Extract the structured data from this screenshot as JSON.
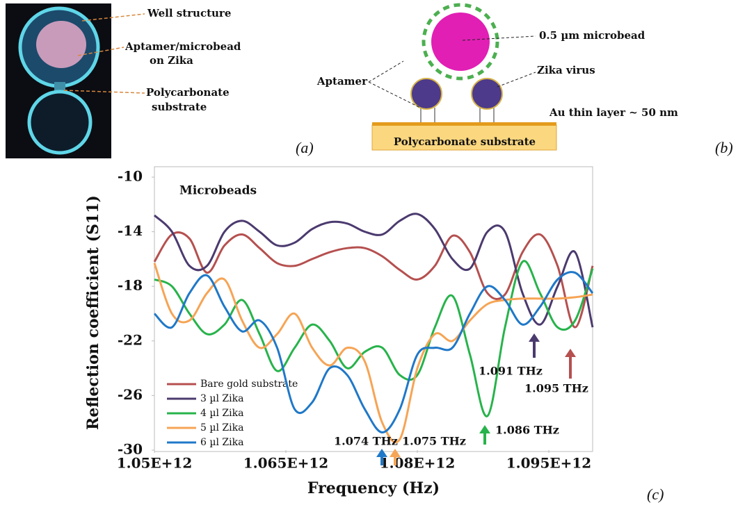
{
  "panel_a": {
    "label": "(a)",
    "annotations": [
      [
        "Well structure"
      ],
      [
        "Aptamer/microbead",
        "on Zika"
      ],
      [
        "Polycarbonate",
        "substrate"
      ]
    ]
  },
  "panel_b": {
    "label": "(b)",
    "microbead": "0.5 µm microbead",
    "virus": "Zika virus",
    "aptamer": "Aptamer",
    "layer": "Au thin layer ~ 50 nm",
    "substrate": "Polycarbonate substrate"
  },
  "chart_data": {
    "type": "line",
    "panel_label": "(c)",
    "inset_title": "Microbeads",
    "xlabel": "Frequency (Hz)",
    "ylabel": "Reflection coefficient (S11)",
    "x": [
      1050000000000.0,
      1052000000000.0,
      1054000000000.0,
      1056000000000.0,
      1058000000000.0,
      1060000000000.0,
      1062000000000.0,
      1064000000000.0,
      1066000000000.0,
      1068000000000.0,
      1070000000000.0,
      1072000000000.0,
      1074000000000.0,
      1076000000000.0,
      1078000000000.0,
      1080000000000.0,
      1082000000000.0,
      1084000000000.0,
      1086000000000.0,
      1088000000000.0,
      1090000000000.0,
      1092000000000.0,
      1094000000000.0,
      1096000000000.0,
      1098000000000.0,
      1100000000000.0
    ],
    "xlim": [
      1050000000000.0,
      1100000000000.0
    ],
    "xticks": [
      {
        "value": 1050000000000.0,
        "label": "1.05E+12"
      },
      {
        "value": 1065000000000.0,
        "label": "1.065E+12"
      },
      {
        "value": 1080000000000.0,
        "label": "1.08E+12"
      },
      {
        "value": 1095000000000.0,
        "label": "1.095E+12"
      }
    ],
    "ylim": [
      -30,
      -10
    ],
    "yticks": [
      -10,
      -14,
      -18,
      -22,
      -26,
      -30
    ],
    "series": [
      {
        "name": "Bare gold substrate",
        "color": "#b5504f",
        "values": [
          -16.2,
          -14.2,
          -14.5,
          -17,
          -15,
          -14.2,
          -15.2,
          -16.3,
          -16.5,
          -16,
          -15.5,
          -15.2,
          -15.2,
          -15.8,
          -16.8,
          -17.5,
          -16.5,
          -14.3,
          -15.5,
          -18.5,
          -18.6,
          -15.5,
          -14.2,
          -16.5,
          -21,
          -16.5
        ]
      },
      {
        "name": "3 µl Zika",
        "color": "#4b3a6e",
        "values": [
          -12.8,
          -14,
          -16.5,
          -16.5,
          -14,
          -13.2,
          -14,
          -15,
          -14.8,
          -13.8,
          -13.3,
          -13.4,
          -14,
          -14.2,
          -13.2,
          -12.7,
          -13.8,
          -16,
          -16.7,
          -14,
          -14,
          -18.5,
          -20.8,
          -18,
          -15.5,
          -21
        ]
      },
      {
        "name": "4 µl Zika",
        "color": "#27b34b",
        "values": [
          -17.5,
          -18,
          -20,
          -21.5,
          -20.8,
          -19,
          -21.5,
          -24.2,
          -22.5,
          -20.8,
          -22,
          -24,
          -22.8,
          -22.5,
          -24.5,
          -24.5,
          -21,
          -18.7,
          -23,
          -27.5,
          -21,
          -16.2,
          -18.5,
          -21,
          -20.5,
          -16.7
        ]
      },
      {
        "name": "5 µl Zika",
        "color": "#f6a455",
        "values": [
          -16.3,
          -20,
          -20.5,
          -18.5,
          -17.5,
          -20.5,
          -22.5,
          -21.5,
          -20,
          -22.5,
          -23.8,
          -22.5,
          -23.5,
          -28,
          -29.2,
          -24,
          -21.5,
          -22,
          -20.5,
          -19.3,
          -19,
          -18.9,
          -18.9,
          -18.9,
          -18.8,
          -18.6
        ]
      },
      {
        "name": "6 µl Zika",
        "color": "#1f78c8",
        "values": [
          -20,
          -21,
          -18.5,
          -17.2,
          -19.5,
          -21.3,
          -20.5,
          -22.5,
          -27,
          -26.5,
          -24,
          -24.5,
          -27,
          -28.7,
          -27,
          -23,
          -22.5,
          -22.5,
          -20,
          -18,
          -19,
          -20.8,
          -19.5,
          -17.5,
          -17,
          -18.5
        ]
      }
    ],
    "annotations": [
      "1.074 THz",
      "1.075 THz",
      "1.086 THz",
      "1.091 THz",
      "1.095 THz"
    ]
  }
}
